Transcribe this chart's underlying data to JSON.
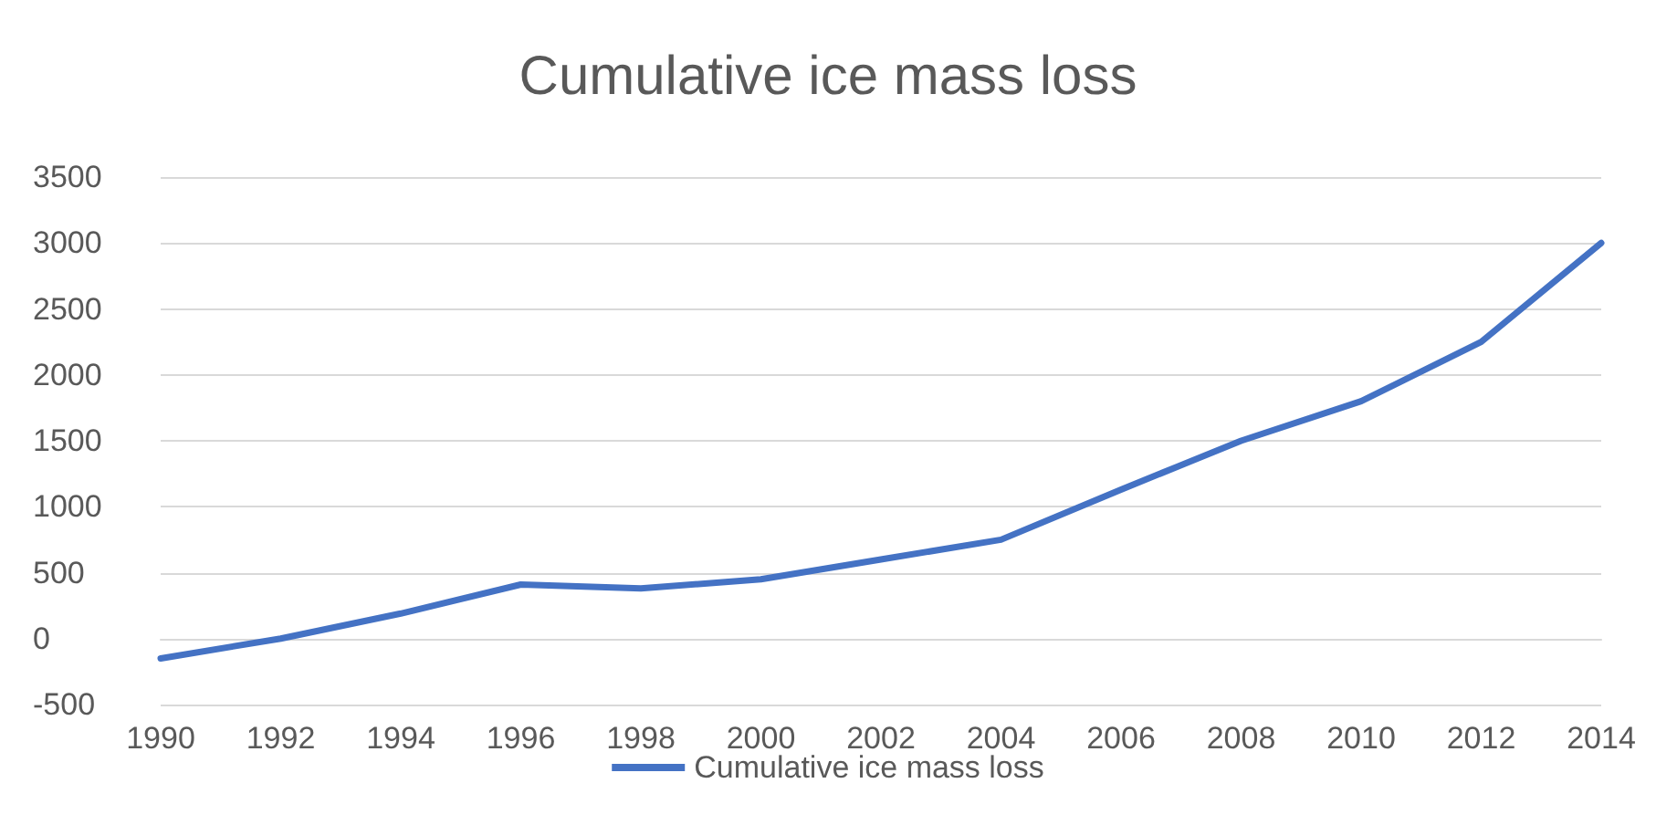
{
  "chart_data": {
    "type": "line",
    "title": "Cumulative ice mass loss",
    "categories": [
      "1990",
      "1992",
      "1994",
      "1996",
      "1998",
      "2000",
      "2002",
      "2004",
      "2006",
      "2008",
      "2010",
      "2012",
      "2014"
    ],
    "series": [
      {
        "name": "Cumulative ice mass loss",
        "color": "#4472c4",
        "values": [
          -150,
          0,
          190,
          410,
          380,
          450,
          600,
          750,
          1130,
          1500,
          1800,
          2250,
          3000
        ]
      }
    ],
    "ylim": [
      -500,
      3500
    ],
    "yticks": [
      -500,
      0,
      500,
      1000,
      1500,
      2000,
      2500,
      3000,
      3500
    ],
    "grid": "y",
    "legend": "bottom",
    "marker": "none",
    "line_style": "solid"
  }
}
